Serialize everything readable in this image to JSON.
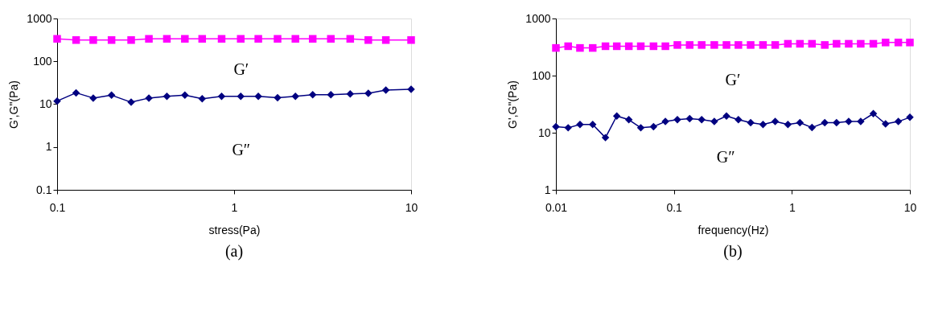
{
  "chart_data": [
    {
      "type": "line",
      "title": "(a)",
      "xlabel": "stress(Pa)",
      "ylabel": "G',G\"(Pa)",
      "log": "xy",
      "grid": false,
      "xlim": [
        0.1,
        10
      ],
      "xticks": [
        0.1,
        1,
        10
      ],
      "ylim": [
        0.1,
        1000
      ],
      "yticks": [
        0.1,
        1,
        10,
        100,
        1000
      ],
      "x": [
        0.1,
        0.128,
        0.16,
        0.203,
        0.262,
        0.33,
        0.417,
        0.527,
        0.66,
        0.85,
        1.09,
        1.37,
        1.76,
        2.22,
        2.78,
        3.52,
        4.53,
        5.73,
        7.2,
        10
      ],
      "series": [
        {
          "color": "#ff00ff",
          "marker": "square",
          "values": [
            335,
            314,
            314,
            314,
            314,
            335,
            335,
            335,
            335,
            335,
            335,
            335,
            335,
            335,
            335,
            335,
            335,
            314,
            314,
            314
          ]
        },
        {
          "color": "#000080",
          "marker": "diamond",
          "values": [
            11.8,
            18.4,
            13.9,
            16.2,
            11.1,
            13.9,
            15.2,
            16.2,
            13.4,
            15.2,
            15.2,
            15.2,
            14.1,
            15.2,
            16.6,
            16.6,
            17.3,
            18.0,
            21.4,
            22.3
          ]
        }
      ],
      "annotations": [
        "G′",
        "G″"
      ]
    },
    {
      "type": "line",
      "title": "(b)",
      "xlabel": "frequency(Hz)",
      "ylabel": "G',G\"(Pa)",
      "log": "xy",
      "grid": false,
      "xlim": [
        0.01,
        10
      ],
      "xticks": [
        0.01,
        0.1,
        1,
        10
      ],
      "ylim": [
        1,
        1000
      ],
      "yticks": [
        1,
        10,
        100,
        1000
      ],
      "x": [
        0.01,
        0.0127,
        0.016,
        0.0205,
        0.0263,
        0.0328,
        0.0415,
        0.0524,
        0.0672,
        0.0847,
        0.107,
        0.136,
        0.172,
        0.22,
        0.279,
        0.352,
        0.447,
        0.569,
        0.722,
        0.925,
        1.17,
        1.48,
        1.9,
        2.39,
        3.03,
        3.83,
        4.9,
        6.22,
        7.98,
        10
      ],
      "series": [
        {
          "color": "#ff00ff",
          "marker": "square",
          "values": [
            305,
            327,
            305,
            305,
            327,
            327,
            327,
            327,
            327,
            327,
            344,
            344,
            344,
            344,
            344,
            344,
            344,
            344,
            344,
            361,
            361,
            361,
            344,
            361,
            361,
            361,
            361,
            380,
            380,
            380
          ]
        },
        {
          "color": "#000080",
          "marker": "diamond",
          "values": [
            12.8,
            12.2,
            13.9,
            13.9,
            8.2,
            19.6,
            16.9,
            12.2,
            12.8,
            15.7,
            16.9,
            17.7,
            16.9,
            15.7,
            19.6,
            16.9,
            15.0,
            13.9,
            15.7,
            13.9,
            15.0,
            12.3,
            15.0,
            15.0,
            15.7,
            15.7,
            21.6,
            14.3,
            15.7,
            18.6
          ]
        }
      ],
      "annotations": [
        "G′",
        "G″"
      ]
    }
  ]
}
